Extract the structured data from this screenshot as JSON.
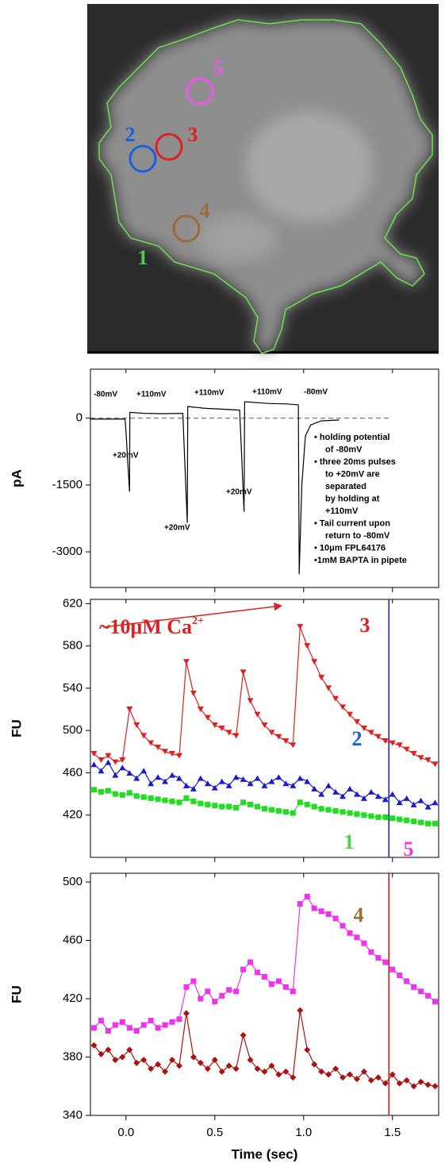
{
  "image_panel": {
    "roi_labels": [
      {
        "label": "1",
        "color": "#4cd04c"
      },
      {
        "label": "2",
        "color": "#1a5fe0"
      },
      {
        "label": "3",
        "color": "#e02020"
      },
      {
        "label": "4",
        "color": "#9a6a3a"
      },
      {
        "label": "5",
        "color": "#ee55ee"
      }
    ],
    "outline_color": "#6fe04f"
  },
  "chart_data": [
    {
      "type": "line",
      "y_label": "pA",
      "xlim": [
        -0.2,
        1.76
      ],
      "ylim": [
        -3800,
        1100
      ],
      "yticks": [
        0,
        -1500,
        -3000
      ],
      "zero_line": true,
      "x": [
        -0.2,
        -0.005,
        0.0,
        0.02,
        0.022,
        0.1,
        0.2,
        0.32,
        0.325,
        0.345,
        0.348,
        0.45,
        0.55,
        0.64,
        0.645,
        0.665,
        0.668,
        0.8,
        0.9,
        0.97,
        0.975,
        0.99,
        1.01,
        1.04,
        1.1,
        1.2
      ],
      "series": [
        {
          "name": null,
          "color": "#000000",
          "values": [
            -20,
            -20,
            -300,
            -1650,
            130,
            110,
            100,
            110,
            -400,
            -2350,
            260,
            220,
            200,
            180,
            -300,
            -2100,
            370,
            330,
            320,
            300,
            -3500,
            -1500,
            -400,
            -150,
            -60,
            -40
          ]
        }
      ],
      "annotations": [
        "-80mV",
        "+110mV",
        "+110mV",
        "+110mV",
        "-80mV",
        "+20mV",
        "+20mV",
        "+20mV"
      ],
      "notes": [
        "• holding potential",
        "of -80mV",
        "• three 20ms pulses",
        "to +20mV are",
        "separated",
        "by holding at",
        "+110mV",
        "• Tail current upon",
        "return to -80mV",
        "• 10μm FPL64176",
        "•1mM BAPTA in pipete"
      ]
    },
    {
      "type": "line",
      "y_label": "FU",
      "xlim": [
        -0.2,
        1.76
      ],
      "ylim": [
        380,
        624
      ],
      "yticks": [
        620,
        580,
        540,
        500,
        460,
        420
      ],
      "cursor_x": 1.48,
      "cursor_color": "#1a1aa0",
      "callout": {
        "text": "~10μM Ca",
        "superscript": "2+",
        "color": "#e02020"
      },
      "x": [
        -0.18,
        -0.14,
        -0.1,
        -0.06,
        -0.02,
        0.02,
        0.06,
        0.1,
        0.14,
        0.18,
        0.22,
        0.26,
        0.3,
        0.34,
        0.38,
        0.42,
        0.46,
        0.5,
        0.54,
        0.58,
        0.62,
        0.66,
        0.7,
        0.74,
        0.78,
        0.82,
        0.86,
        0.9,
        0.94,
        0.98,
        1.02,
        1.06,
        1.1,
        1.14,
        1.18,
        1.22,
        1.26,
        1.3,
        1.34,
        1.38,
        1.42,
        1.46,
        1.5,
        1.54,
        1.58,
        1.62,
        1.66,
        1.7,
        1.74
      ],
      "series": [
        {
          "name": "3",
          "color": "#e02020",
          "marker": "tri-down",
          "values": [
            478,
            472,
            476,
            470,
            472,
            520,
            505,
            495,
            488,
            484,
            480,
            478,
            476,
            565,
            535,
            520,
            512,
            505,
            502,
            498,
            495,
            555,
            528,
            515,
            505,
            498,
            494,
            490,
            486,
            598,
            580,
            565,
            550,
            540,
            530,
            522,
            515,
            508,
            502,
            498,
            494,
            490,
            488,
            486,
            482,
            478,
            474,
            472,
            468
          ]
        },
        {
          "name": "2",
          "color": "#1a1ad0",
          "label_color": "#1a5fe0",
          "marker": "tri-up",
          "values": [
            468,
            462,
            470,
            458,
            465,
            460,
            455,
            462,
            450,
            456,
            452,
            458,
            455,
            448,
            445,
            455,
            450,
            446,
            452,
            448,
            456,
            454,
            450,
            455,
            448,
            452,
            456,
            450,
            448,
            455,
            452,
            445,
            440,
            448,
            442,
            438,
            445,
            440,
            436,
            442,
            438,
            435,
            440,
            432,
            436,
            430,
            434,
            428,
            432
          ]
        },
        {
          "name": "1",
          "color": "#22dd22",
          "label_color": "#4cd04c",
          "marker": "square",
          "values": [
            444,
            442,
            443,
            440,
            439,
            441,
            438,
            437,
            436,
            435,
            434,
            433,
            432,
            436,
            433,
            431,
            430,
            429,
            428,
            428,
            427,
            432,
            430,
            428,
            426,
            425,
            424,
            423,
            422,
            432,
            430,
            428,
            426,
            425,
            424,
            423,
            422,
            421,
            420,
            419,
            418,
            418,
            417,
            416,
            415,
            414,
            413,
            412,
            412
          ]
        }
      ]
    },
    {
      "type": "line",
      "y_label": "FU",
      "x_label": "Time (sec)",
      "xlim": [
        -0.2,
        1.76
      ],
      "ylim": [
        340,
        506
      ],
      "yticks": [
        500,
        460,
        420,
        380,
        340
      ],
      "xticks": [
        {
          "value": 0,
          "label": "0.0"
        },
        0.5,
        {
          "value": 1,
          "label": "1.0"
        },
        1.5
      ],
      "cursor_x": 1.48,
      "cursor_color": "#cc1111",
      "x": [
        -0.18,
        -0.14,
        -0.1,
        -0.06,
        -0.02,
        0.02,
        0.06,
        0.1,
        0.14,
        0.18,
        0.22,
        0.26,
        0.3,
        0.34,
        0.38,
        0.42,
        0.46,
        0.5,
        0.54,
        0.58,
        0.62,
        0.66,
        0.7,
        0.74,
        0.78,
        0.82,
        0.86,
        0.9,
        0.94,
        0.98,
        1.02,
        1.06,
        1.1,
        1.14,
        1.18,
        1.22,
        1.26,
        1.3,
        1.34,
        1.38,
        1.42,
        1.46,
        1.5,
        1.54,
        1.58,
        1.62,
        1.66,
        1.7,
        1.74
      ],
      "series": [
        {
          "name": "5",
          "color": "#ee33ee",
          "marker": "square",
          "values": [
            400,
            405,
            398,
            402,
            404,
            400,
            398,
            402,
            405,
            400,
            402,
            404,
            406,
            428,
            432,
            420,
            425,
            418,
            422,
            426,
            425,
            440,
            445,
            438,
            435,
            430,
            432,
            428,
            425,
            485,
            490,
            482,
            480,
            478,
            475,
            470,
            465,
            462,
            458,
            452,
            448,
            445,
            440,
            436,
            432,
            428,
            425,
            422,
            418
          ]
        },
        {
          "name": "4",
          "color": "#aa1111",
          "label_color": "#9a6a3a",
          "marker": "diamond",
          "values": [
            388,
            382,
            385,
            378,
            380,
            385,
            376,
            378,
            372,
            375,
            370,
            378,
            374,
            410,
            380,
            376,
            372,
            378,
            370,
            374,
            372,
            395,
            378,
            372,
            370,
            374,
            368,
            370,
            366,
            412,
            385,
            375,
            370,
            368,
            372,
            366,
            368,
            365,
            370,
            364,
            366,
            362,
            368,
            362,
            364,
            360,
            363,
            361,
            360
          ]
        }
      ]
    }
  ]
}
